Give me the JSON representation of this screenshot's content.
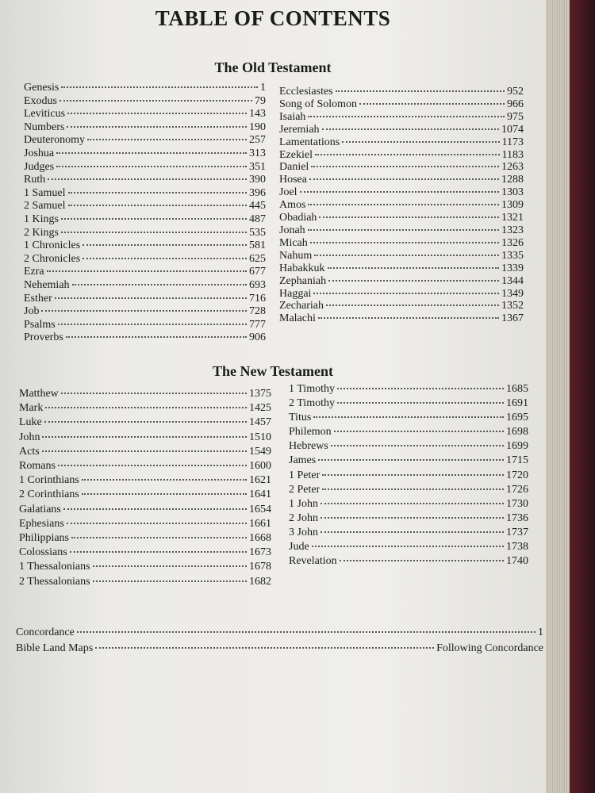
{
  "title": "TABLE OF CONTENTS",
  "old_testament": {
    "heading": "The Old Testament",
    "left": [
      [
        "Genesis",
        1
      ],
      [
        "Exodus",
        79
      ],
      [
        "Leviticus",
        143
      ],
      [
        "Numbers",
        190
      ],
      [
        "Deuteronomy",
        257
      ],
      [
        "Joshua",
        313
      ],
      [
        "Judges",
        351
      ],
      [
        "Ruth",
        390
      ],
      [
        "1 Samuel",
        396
      ],
      [
        "2 Samuel",
        445
      ],
      [
        "1 Kings",
        487
      ],
      [
        "2 Kings",
        535
      ],
      [
        "1 Chronicles",
        581
      ],
      [
        "2 Chronicles",
        625
      ],
      [
        "Ezra",
        677
      ],
      [
        "Nehemiah",
        693
      ],
      [
        "Esther",
        716
      ],
      [
        "Job",
        728
      ],
      [
        "Psalms",
        777
      ],
      [
        "Proverbs",
        906
      ]
    ],
    "right": [
      [
        "Ecclesiastes",
        952
      ],
      [
        "Song of Solomon",
        966
      ],
      [
        "Isaiah",
        975
      ],
      [
        "Jeremiah",
        1074
      ],
      [
        "Lamentations",
        1173
      ],
      [
        "Ezekiel",
        1183
      ],
      [
        "Daniel",
        1263
      ],
      [
        "Hosea",
        1288
      ],
      [
        "Joel",
        1303
      ],
      [
        "Amos",
        1309
      ],
      [
        "Obadiah",
        1321
      ],
      [
        "Jonah",
        1323
      ],
      [
        "Micah",
        1326
      ],
      [
        "Nahum",
        1335
      ],
      [
        "Habakkuk",
        1339
      ],
      [
        "Zephaniah",
        1344
      ],
      [
        "Haggai",
        1349
      ],
      [
        "Zechariah",
        1352
      ],
      [
        "Malachi",
        1367
      ]
    ]
  },
  "new_testament": {
    "heading": "The New Testament",
    "left": [
      [
        "Matthew",
        1375
      ],
      [
        "Mark",
        1425
      ],
      [
        "Luke",
        1457
      ],
      [
        "John",
        1510
      ],
      [
        "Acts",
        1549
      ],
      [
        "Romans",
        1600
      ],
      [
        "1 Corinthians",
        1621
      ],
      [
        "2 Corinthians",
        1641
      ],
      [
        "Galatians",
        1654
      ],
      [
        "Ephesians",
        1661
      ],
      [
        "Philippians",
        1668
      ],
      [
        "Colossians",
        1673
      ],
      [
        "1 Thessalonians",
        1678
      ],
      [
        "2 Thessalonians",
        1682
      ]
    ],
    "right": [
      [
        "1 Timothy",
        1685
      ],
      [
        "2 Timothy",
        1691
      ],
      [
        "Titus",
        1695
      ],
      [
        "Philemon",
        1698
      ],
      [
        "Hebrews",
        1699
      ],
      [
        "James",
        1715
      ],
      [
        "1 Peter",
        1720
      ],
      [
        "2 Peter",
        1726
      ],
      [
        "1 John",
        1730
      ],
      [
        "2 John",
        1736
      ],
      [
        "3 John",
        1737
      ],
      [
        "Jude",
        1738
      ],
      [
        "Revelation",
        1740
      ]
    ]
  },
  "back_matter": [
    [
      "Concordance",
      1
    ],
    [
      "Bible Land Maps",
      "Following Concordance"
    ]
  ]
}
